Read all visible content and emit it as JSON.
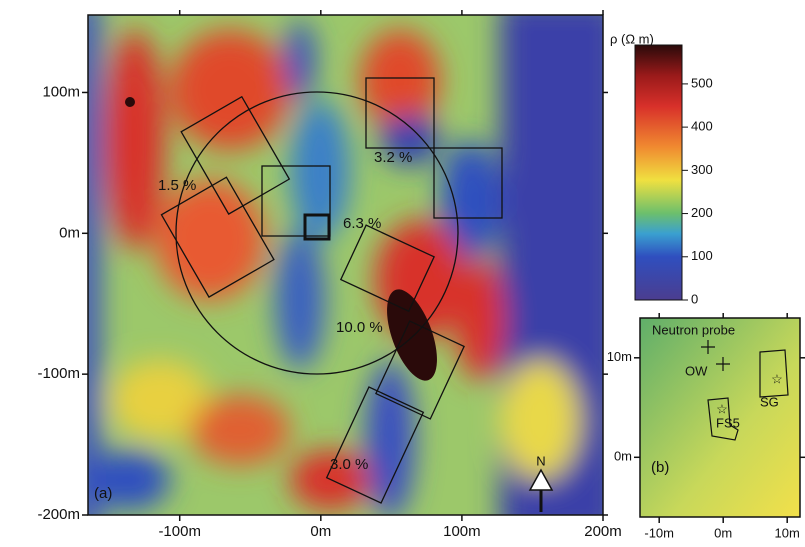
{
  "map_a": {
    "panel_label": "(a)",
    "xlim": [
      -165,
      200
    ],
    "ylim": [
      -200,
      155
    ],
    "x_ticks": [
      {
        "value": -100,
        "label": "-100m"
      },
      {
        "value": 0,
        "label": "0m"
      },
      {
        "value": 100,
        "label": "100m"
      },
      {
        "value": 200,
        "label": "200m"
      }
    ],
    "y_ticks": [
      {
        "value": 100,
        "label": "100m"
      },
      {
        "value": 0,
        "label": "0m"
      },
      {
        "value": -100,
        "label": "-100m"
      },
      {
        "value": -200,
        "label": "-200m"
      }
    ],
    "annotations": [
      "1.5 %",
      "3.2 %",
      "6.3 %",
      "10.0 %",
      "3.0 %"
    ],
    "north": "N"
  },
  "colorbar": {
    "label": "ρ (Ω m)",
    "range": [
      0,
      590
    ],
    "ticks": [
      0,
      100,
      200,
      300,
      400,
      500
    ]
  },
  "map_b": {
    "panel_label": "(b)",
    "xlim": [
      -13,
      12
    ],
    "ylim": [
      -6,
      14
    ],
    "x_ticks": [
      {
        "value": -10,
        "label": "-10m"
      },
      {
        "value": 0,
        "label": "0m"
      },
      {
        "value": 10,
        "label": "10m"
      }
    ],
    "y_ticks": [
      {
        "value": 10,
        "label": "10m"
      },
      {
        "value": 0,
        "label": "0m"
      }
    ],
    "labels": [
      "Neutron probe",
      "OW",
      "SG",
      "FS5"
    ]
  }
}
